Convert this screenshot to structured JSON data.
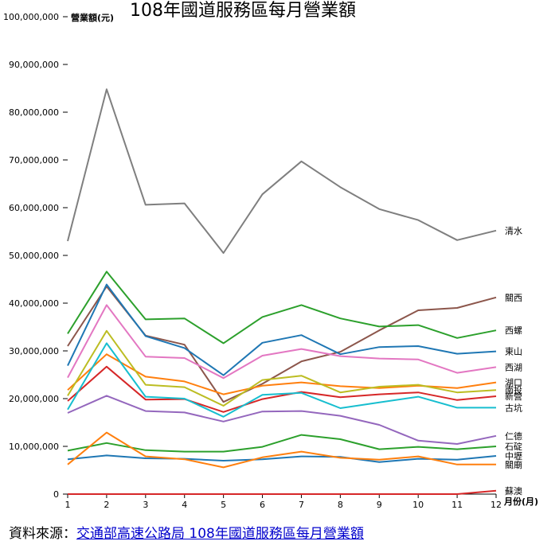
{
  "chart_data": {
    "type": "line",
    "title": "108年國道服務區每月營業額",
    "ylabel": "營業額(元)",
    "xlabel": "月份(月)",
    "x": [
      1,
      2,
      3,
      4,
      5,
      6,
      7,
      8,
      9,
      10,
      11,
      12
    ],
    "ylim": [
      0,
      100000000
    ],
    "yticks": [
      0,
      10000000,
      20000000,
      30000000,
      40000000,
      50000000,
      60000000,
      70000000,
      80000000,
      90000000,
      100000000
    ],
    "ytick_labels": [
      "0",
      "10,000,000",
      "20,000,000",
      "30,000,000",
      "40,000,000",
      "50,000,000",
      "60,000,000",
      "70,000,000",
      "80,000,000",
      "90,000,000",
      "100,000,000"
    ],
    "grid": false,
    "legend": "end-of-line labels",
    "series": [
      {
        "name": "清水",
        "color": "#7f7f7f",
        "values": [
          53000000,
          84800000,
          60600000,
          60900000,
          50500000,
          62800000,
          69700000,
          64300000,
          59700000,
          57400000,
          53200000,
          55200000
        ]
      },
      {
        "name": "關西",
        "color": "#8c564b",
        "values": [
          31000000,
          43500000,
          33200000,
          31300000,
          19300000,
          23100000,
          27800000,
          29800000,
          34300000,
          38500000,
          39000000,
          41200000
        ]
      },
      {
        "name": "西螺",
        "color": "#2ca02c",
        "values": [
          33600000,
          46600000,
          36600000,
          36800000,
          31600000,
          37100000,
          39600000,
          36800000,
          35100000,
          35400000,
          32700000,
          34300000
        ]
      },
      {
        "name": "東山",
        "color": "#1f77b4",
        "values": [
          26900000,
          43900000,
          33100000,
          30600000,
          24900000,
          31700000,
          33300000,
          29300000,
          30800000,
          31000000,
          29400000,
          29900000
        ]
      },
      {
        "name": "西湖",
        "color": "#e377c2",
        "values": [
          24400000,
          39600000,
          28800000,
          28500000,
          24300000,
          29000000,
          30400000,
          28900000,
          28400000,
          28200000,
          25400000,
          26600000
        ]
      },
      {
        "name": "湖口",
        "color": "#ff7f0e",
        "values": [
          21800000,
          29300000,
          24600000,
          23600000,
          20900000,
          22700000,
          23400000,
          22600000,
          22200000,
          22700000,
          22200000,
          23400000
        ]
      },
      {
        "name": "南投",
        "color": "#bcbd22",
        "values": [
          20600000,
          34200000,
          22900000,
          22400000,
          18500000,
          23900000,
          24800000,
          21300000,
          22500000,
          22900000,
          21300000,
          21800000
        ]
      },
      {
        "name": "新營",
        "color": "#d62728",
        "values": [
          19500000,
          26700000,
          19800000,
          19900000,
          17200000,
          19900000,
          21400000,
          20300000,
          20900000,
          21300000,
          19700000,
          20500000
        ]
      },
      {
        "name": "古坑",
        "color": "#17becf",
        "values": [
          17700000,
          31600000,
          20400000,
          20000000,
          16200000,
          20800000,
          21200000,
          18000000,
          19200000,
          20400000,
          18100000,
          18100000
        ]
      },
      {
        "name": "仁德",
        "color": "#9467bd",
        "values": [
          17000000,
          20600000,
          17400000,
          17100000,
          15200000,
          17300000,
          17400000,
          16400000,
          14500000,
          11200000,
          10500000,
          12200000
        ]
      },
      {
        "name": "石碇",
        "color": "#2ca02c",
        "values": [
          9100000,
          10700000,
          9200000,
          8900000,
          8900000,
          9900000,
          12400000,
          11500000,
          9400000,
          9900000,
          9400000,
          10000000
        ]
      },
      {
        "name": "中壢",
        "color": "#1f77b4",
        "values": [
          7300000,
          8100000,
          7500000,
          7400000,
          7000000,
          7300000,
          7900000,
          7800000,
          6700000,
          7400000,
          7200000,
          8000000
        ]
      },
      {
        "name": "關廟",
        "color": "#ff7f0e",
        "values": [
          6200000,
          12900000,
          7900000,
          7300000,
          5600000,
          7700000,
          8900000,
          7600000,
          7200000,
          7900000,
          6200000,
          6200000
        ]
      },
      {
        "name": "蘇澳",
        "color": "#d62728",
        "values": [
          0,
          0,
          0,
          0,
          0,
          0,
          0,
          0,
          0,
          0,
          0,
          700000
        ]
      }
    ]
  },
  "source": {
    "prefix": "資料來源：",
    "link_text": "交通部高速公路局 108年國道服務區每月營業額"
  }
}
